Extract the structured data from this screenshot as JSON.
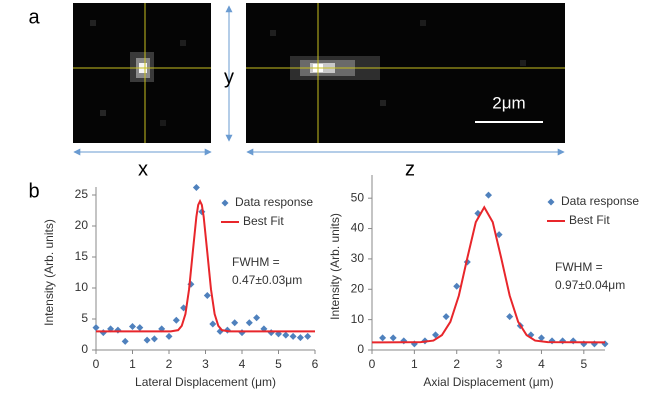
{
  "figure": {
    "panel_a": {
      "label": "a",
      "axis_x": "x",
      "axis_y": "y",
      "axis_z": "z",
      "scale_bar": "2μm"
    },
    "panel_b": {
      "label": "b"
    }
  },
  "chart_data": [
    {
      "type": "scatter",
      "xlabel": "Lateral Displacement (μm)",
      "ylabel": "Intensity (Arb. units)",
      "xlim": [
        0,
        6
      ],
      "xticks": [
        0,
        1,
        2,
        3,
        4,
        5,
        6
      ],
      "ylim": [
        0,
        25
      ],
      "yticks": [
        0,
        5,
        10,
        15,
        20,
        25
      ],
      "annotation": [
        "FWHM =",
        "0.47±0.03μm"
      ],
      "series": [
        {
          "name": "Data response",
          "type": "scatter",
          "color": "#4f81bd",
          "x": [
            0,
            0.2,
            0.4,
            0.6,
            0.8,
            1.0,
            1.2,
            1.4,
            1.6,
            1.8,
            2.0,
            2.2,
            2.4,
            2.6,
            2.75,
            2.9,
            3.05,
            3.2,
            3.4,
            3.6,
            3.8,
            4.0,
            4.2,
            4.4,
            4.6,
            4.8,
            5.0,
            5.2,
            5.4,
            5.6,
            5.8
          ],
          "values": [
            3.6,
            2.8,
            3.4,
            3.2,
            1.4,
            3.8,
            3.6,
            1.6,
            1.8,
            3.4,
            2.2,
            4.8,
            6.8,
            10.6,
            26.2,
            22.3,
            8.8,
            4.2,
            3.0,
            3.2,
            4.4,
            2.8,
            4.4,
            5.2,
            3.4,
            2.8,
            2.6,
            2.4,
            2.2,
            2.0,
            2.2
          ]
        },
        {
          "name": "Best Fit",
          "type": "line",
          "color": "#e8262b",
          "x": [
            0,
            1,
            2.05,
            2.25,
            2.35,
            2.45,
            2.55,
            2.65,
            2.75,
            2.8,
            2.85,
            2.9,
            2.95,
            3.05,
            3.15,
            3.25,
            3.35,
            3.45,
            3.65,
            4.5,
            6
          ],
          "values": [
            3,
            3,
            3.0,
            3.2,
            3.9,
            5.8,
            9.8,
            15.7,
            21.5,
            23.4,
            24,
            23.4,
            21.5,
            15.7,
            9.8,
            5.8,
            3.9,
            3.2,
            3.0,
            3,
            3
          ]
        }
      ]
    },
    {
      "type": "scatter",
      "xlabel": "Axial Displacement (μm)",
      "ylabel": "Intensity (Arb. units)",
      "xlim": [
        0,
        5.5
      ],
      "xticks": [
        0,
        1,
        2,
        3,
        4,
        5
      ],
      "ylim": [
        0,
        55
      ],
      "yticks": [
        0,
        10,
        20,
        30,
        40,
        50
      ],
      "annotation": [
        "FWHM =",
        "0.97±0.04μm"
      ],
      "series": [
        {
          "name": "Data response",
          "type": "scatter",
          "color": "#4f81bd",
          "x": [
            0.25,
            0.5,
            0.75,
            1.0,
            1.25,
            1.5,
            1.75,
            2.0,
            2.25,
            2.5,
            2.75,
            3.0,
            3.25,
            3.5,
            3.75,
            4.0,
            4.25,
            4.5,
            4.75,
            5.0,
            5.25,
            5.5
          ],
          "values": [
            4,
            4,
            3,
            2,
            3,
            5,
            11,
            21,
            29,
            45,
            51,
            38,
            11,
            8,
            5,
            4,
            3,
            3,
            3,
            2,
            2,
            2
          ]
        },
        {
          "name": "Best Fit",
          "type": "line",
          "color": "#e8262b",
          "x": [
            0,
            1.15,
            1.45,
            1.65,
            1.85,
            2.05,
            2.25,
            2.45,
            2.65,
            2.85,
            3.05,
            3.25,
            3.45,
            3.65,
            3.85,
            4.15,
            5.5
          ],
          "values": [
            2.5,
            2.6,
            3.1,
            4.9,
            9.3,
            17.9,
            30.3,
            42.1,
            47,
            42.1,
            30.3,
            17.9,
            9.3,
            4.9,
            3.1,
            2.6,
            2.5
          ]
        }
      ]
    }
  ]
}
